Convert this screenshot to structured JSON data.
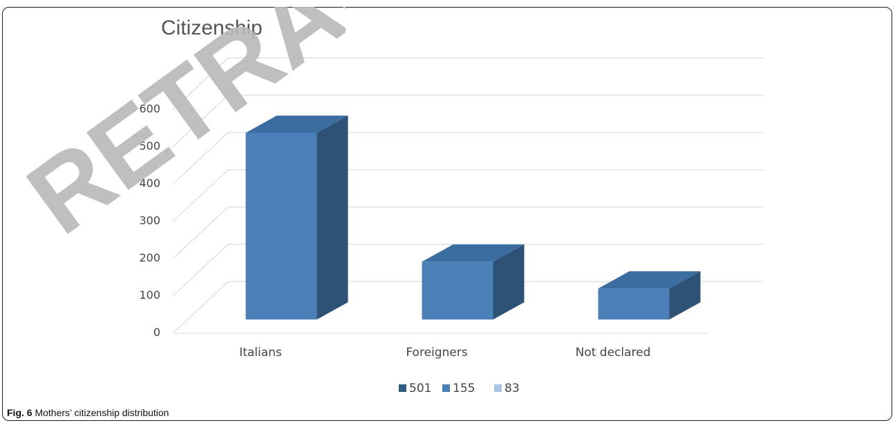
{
  "chart_data": {
    "type": "bar",
    "title": "Citizenship",
    "categories": [
      "Italians",
      "Foreigners",
      "Not declared"
    ],
    "values": [
      501,
      155,
      83
    ],
    "ylim": [
      0,
      600
    ],
    "yticks": [
      0,
      100,
      200,
      300,
      400,
      500,
      600
    ],
    "ytick_labels": [
      "0",
      "100",
      "200",
      "300",
      "400",
      "500",
      "600"
    ],
    "legend": {
      "placement": "bottom-center",
      "entries": [
        {
          "label": "501",
          "color": "#2e5a84"
        },
        {
          "label": "155",
          "color": "#4a7fb8"
        },
        {
          "label": "83",
          "color": "#a9c4e2"
        }
      ]
    },
    "grid": true,
    "style": "3d-column",
    "colors": {
      "bar_front": "#4a7fb8",
      "bar_top": "#3b6da0",
      "bar_side": "#2e5276"
    }
  },
  "caption": {
    "fig_label": "Fig. 6",
    "text": "Mothers’ citizenship distribution"
  },
  "watermark": {
    "text": "RETRACTED",
    "color": "#b8b8b8"
  }
}
